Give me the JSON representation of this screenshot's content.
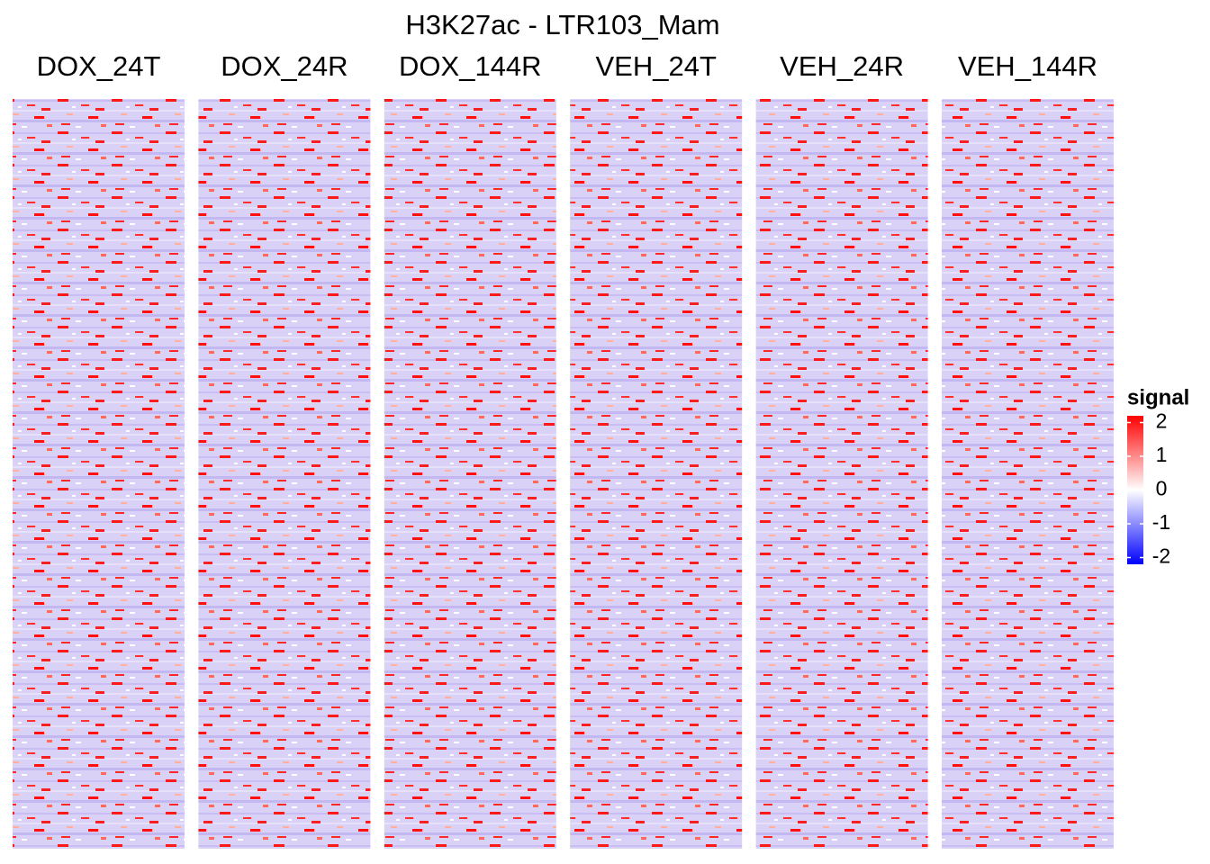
{
  "chart_data": {
    "type": "heatmap",
    "title": "H3K27ac - LTR103_Mam",
    "panels": [
      "DOX_24T",
      "DOX_24R",
      "DOX_144R",
      "VEH_24T",
      "VEH_24R",
      "VEH_144R"
    ],
    "legend_title": "signal",
    "colorbar_lim": [
      -2.2,
      2.2
    ],
    "colorbar_ticks": [
      2,
      1,
      0,
      -1,
      -2
    ],
    "color_low": "#0000ff",
    "color_mid": "#ffffff",
    "color_high": "#ff0000"
  }
}
